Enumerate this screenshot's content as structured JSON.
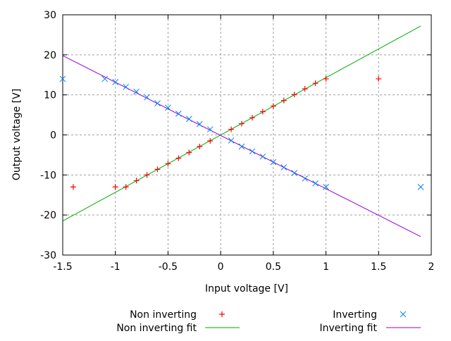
{
  "chart_data": {
    "type": "scatter",
    "xlabel": "Input voltage [V]",
    "ylabel": "Output voltage [V]",
    "xlim": [
      -1.5,
      2
    ],
    "ylim": [
      -30,
      30
    ],
    "xticks": [
      -1.5,
      -1,
      -0.5,
      0,
      0.5,
      1,
      1.5,
      2
    ],
    "xtick_labels": [
      "-1.5",
      "-1",
      "-0.5",
      "0",
      "0.5",
      "1",
      "1.5",
      "2"
    ],
    "yticks": [
      -30,
      -20,
      -10,
      0,
      10,
      20,
      30
    ],
    "ytick_labels": [
      "-30",
      "-20",
      "-10",
      "0",
      "10",
      "20",
      "30"
    ],
    "grid": true,
    "legend_placement": "bottom",
    "series": [
      {
        "name": "Non inverting",
        "kind": "points",
        "marker": "plus",
        "color": "#ff0000",
        "x": [
          -1.4,
          -1.0,
          -0.9,
          -0.8,
          -0.7,
          -0.6,
          -0.5,
          -0.4,
          -0.3,
          -0.2,
          -0.1,
          0.1,
          0.2,
          0.3,
          0.4,
          0.5,
          0.6,
          0.7,
          0.8,
          0.9,
          1.0,
          1.5
        ],
        "y": [
          -13,
          -13,
          -13,
          -11.4,
          -10,
          -8.6,
          -7.2,
          -5.8,
          -4.4,
          -2.9,
          -1.5,
          1.4,
          2.8,
          4.3,
          5.8,
          7.2,
          8.6,
          10.1,
          11.5,
          12.9,
          14,
          14
        ]
      },
      {
        "name": "Non inverting fit",
        "kind": "line",
        "color": "#00aa00",
        "x": [
          -1.5,
          1.9
        ],
        "y": [
          -21.5,
          27.2
        ]
      },
      {
        "name": "Inverting",
        "kind": "points",
        "marker": "cross",
        "color": "#0080ff",
        "x": [
          -1.5,
          -1.1,
          -1.0,
          -0.9,
          -0.8,
          -0.7,
          -0.6,
          -0.5,
          -0.4,
          -0.3,
          -0.2,
          -0.1,
          0.1,
          0.2,
          0.3,
          0.4,
          0.5,
          0.6,
          0.7,
          0.8,
          0.9,
          1.0,
          1.9
        ],
        "y": [
          14,
          14,
          13.2,
          12,
          10.8,
          9.4,
          7.9,
          6.8,
          5.3,
          4.0,
          2.7,
          1.4,
          -1.4,
          -2.9,
          -4.1,
          -5.4,
          -6.8,
          -8.1,
          -9.5,
          -10.9,
          -12.1,
          -13,
          -13
        ]
      },
      {
        "name": "Inverting fit",
        "kind": "line",
        "color": "#9400d3",
        "x": [
          -1.5,
          1.9
        ],
        "y": [
          19.8,
          -25.4
        ]
      }
    ]
  }
}
